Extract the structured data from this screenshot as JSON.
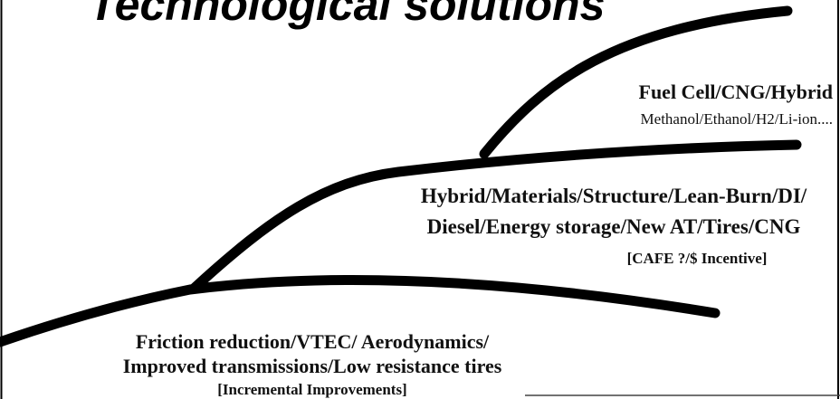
{
  "title": "Technological solutions",
  "stages": [
    {
      "lines": [
        "Friction reduction/VTEC/ Aerodynamics/",
        "Improved transmissions/Low resistance tires"
      ],
      "note": "[Incremental Improvements]"
    },
    {
      "lines": [
        "Hybrid/Materials/Structure/Lean-Burn/DI/",
        "Diesel/Energy storage/New AT/Tires/CNG"
      ],
      "note": "[CAFE ?/$ Incentive]"
    },
    {
      "heading": "Fuel Cell/CNG/Hybrid",
      "detail": "Methanol/Ethanol/H2/Li-ion...."
    }
  ]
}
